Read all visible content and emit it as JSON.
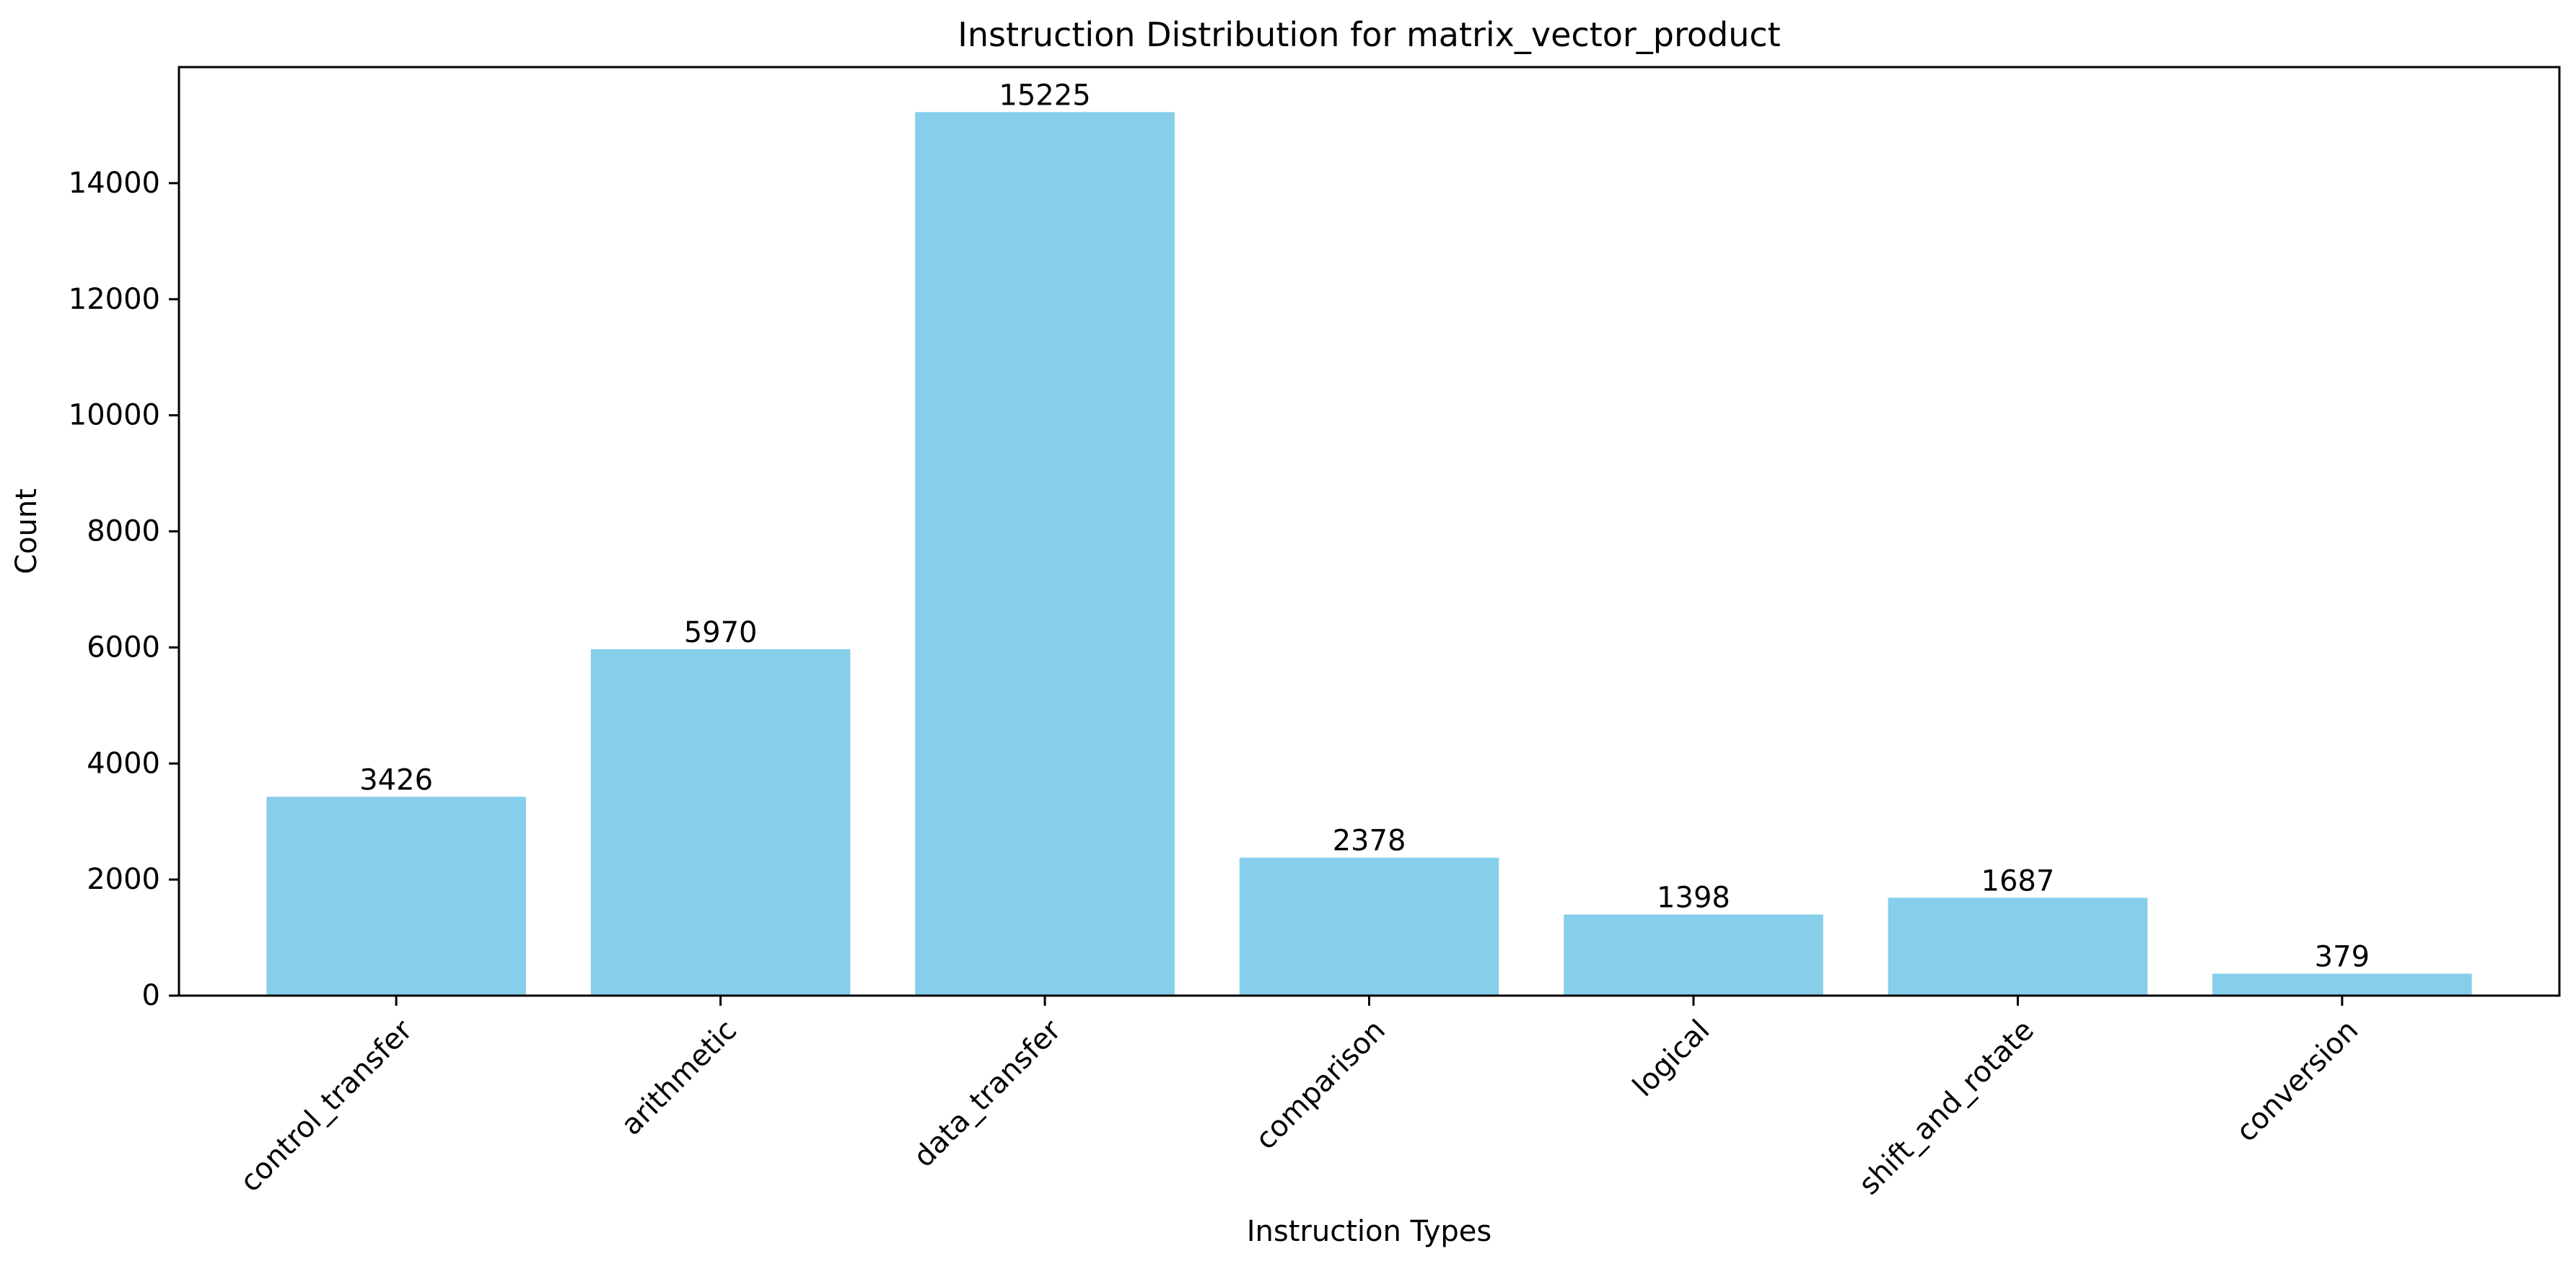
{
  "chart_data": {
    "type": "bar",
    "title": "Instruction Distribution for matrix_vector_product",
    "xlabel": "Instruction Types",
    "ylabel": "Count",
    "categories": [
      "control_transfer",
      "arithmetic",
      "data_transfer",
      "comparison",
      "logical",
      "shift_and_rotate",
      "conversion"
    ],
    "values": [
      3426,
      5970,
      15225,
      2378,
      1398,
      1687,
      379
    ],
    "data_labels": [
      "3426",
      "5970",
      "15225",
      "2378",
      "1398",
      "1687",
      "379"
    ],
    "ylim": [
      0,
      16000
    ],
    "yticks": [
      0,
      2000,
      4000,
      6000,
      8000,
      10000,
      12000,
      14000
    ],
    "ytick_labels": [
      "0",
      "2000",
      "4000",
      "6000",
      "8000",
      "10000",
      "12000",
      "14000"
    ],
    "bar_color": "#87CEEB",
    "grid": false,
    "legend": "none"
  }
}
